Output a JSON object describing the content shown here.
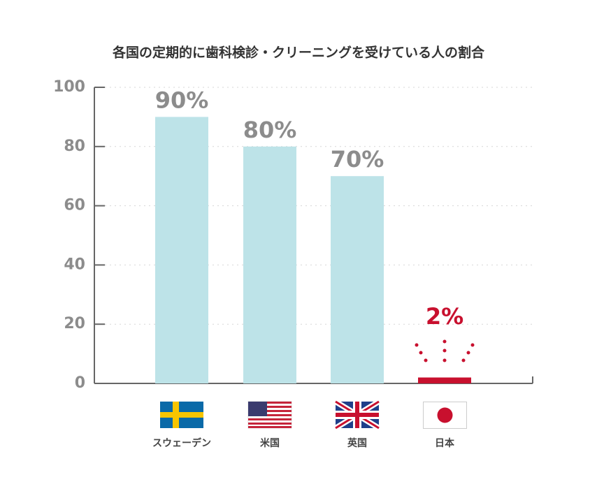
{
  "chart_data": {
    "type": "bar",
    "title": "各国の定期的に歯科検診・クリーニングを受けている人の割合",
    "categories": [
      "スウェーデン",
      "米国",
      "英国",
      "日本"
    ],
    "values": [
      90,
      80,
      70,
      2
    ],
    "value_labels": [
      "90%",
      "80%",
      "70%",
      "2%"
    ],
    "colors": [
      "#bde3e8",
      "#bde3e8",
      "#bde3e8",
      "#c8102e"
    ],
    "value_label_colors": [
      "#8c8c8c",
      "#8c8c8c",
      "#8c8c8c",
      "#c8102e"
    ],
    "ylim": [
      0,
      100
    ],
    "yticks": [
      0,
      20,
      40,
      60,
      80,
      100
    ],
    "grid": true
  }
}
